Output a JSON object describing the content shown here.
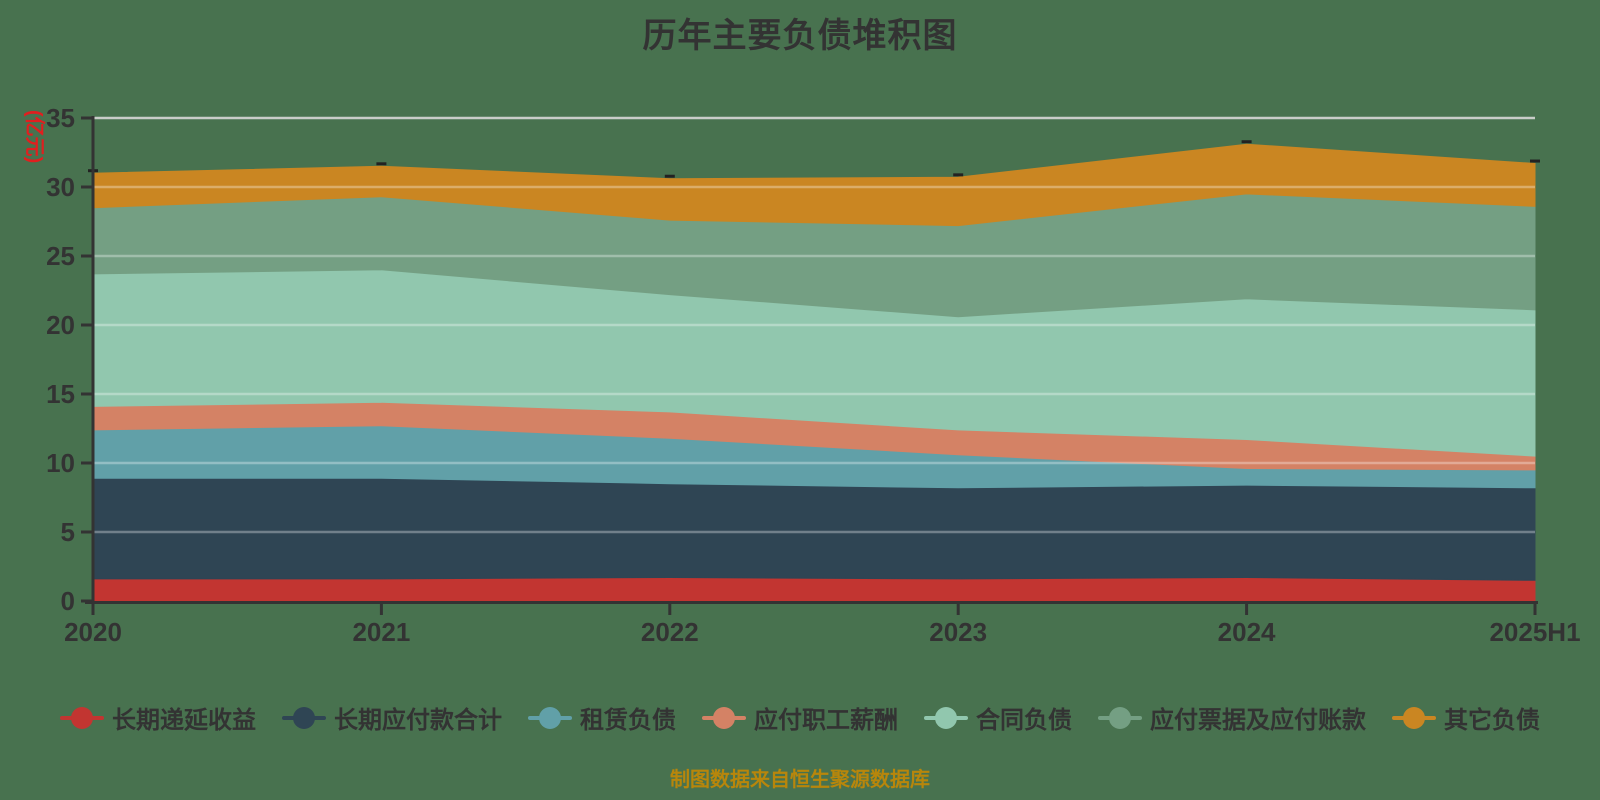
{
  "title": "历年主要负债堆积图",
  "y_axis_name": "(亿元)",
  "footer": "制图数据来自恒生聚源数据库",
  "colors": {
    "background": "#48724F",
    "text": "#333333",
    "axis": "#333333",
    "gridline_on_area": "rgba(255,255,255,0.32)",
    "gridline_top": "#c9cdc9",
    "y_axis_name": "#e01f1f",
    "footer": "#b8860b"
  },
  "chart_data": {
    "type": "area",
    "stacked": true,
    "title": "历年主要负债堆积图",
    "ylabel": "(亿元)",
    "xlabel": "",
    "ylim": [
      0,
      35
    ],
    "y_ticks": [
      0,
      5,
      10,
      15,
      20,
      25,
      30,
      35
    ],
    "grid": true,
    "legend_position": "bottom",
    "categories": [
      "2020",
      "2021",
      "2022",
      "2023",
      "2024",
      "2025H1"
    ],
    "series": [
      {
        "name": "长期递延收益",
        "color": "#c23531",
        "values": [
          1.6,
          1.6,
          1.7,
          1.6,
          1.7,
          1.5
        ]
      },
      {
        "name": "长期应付款合计",
        "color": "#2f4554",
        "values": [
          7.3,
          7.3,
          6.8,
          6.6,
          6.7,
          6.7
        ]
      },
      {
        "name": "租赁负债",
        "color": "#61a0a8",
        "values": [
          3.5,
          3.8,
          3.3,
          2.4,
          1.2,
          1.3
        ]
      },
      {
        "name": "应付职工薪酬",
        "color": "#d48265",
        "values": [
          1.7,
          1.7,
          1.9,
          1.8,
          2.1,
          1.0
        ]
      },
      {
        "name": "合同负债",
        "color": "#91c7ae",
        "values": [
          9.6,
          9.6,
          8.5,
          8.2,
          10.2,
          10.6
        ]
      },
      {
        "name": "应付票据及应付账款",
        "color": "#749f83",
        "values": [
          4.8,
          5.3,
          5.4,
          6.6,
          7.6,
          7.5
        ]
      },
      {
        "name": "其它负债",
        "color": "#ca8622",
        "values": [
          2.5,
          2.2,
          3.0,
          3.5,
          3.6,
          3.1
        ]
      }
    ],
    "stacked_totals": [
      31.0,
      31.5,
      30.6,
      30.7,
      33.1,
      31.7
    ]
  }
}
